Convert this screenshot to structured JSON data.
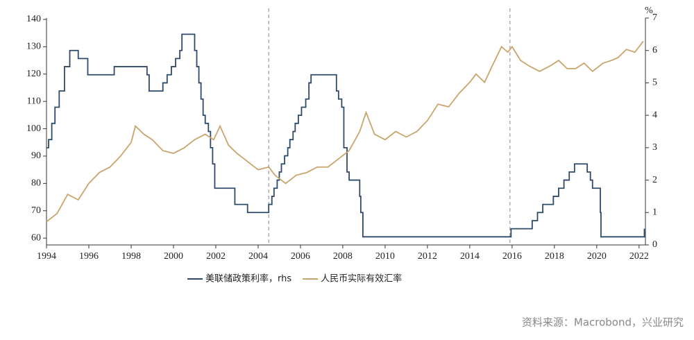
{
  "chart_data": {
    "type": "line",
    "y2_label": "%",
    "source": "资料来源：Macrobond，兴业研究",
    "xlim": [
      1994,
      2022.3
    ],
    "xticks": [
      1994,
      1996,
      1998,
      2000,
      2002,
      2004,
      2006,
      2008,
      2010,
      2012,
      2014,
      2016,
      2018,
      2020,
      2022
    ],
    "ylim": [
      57.5,
      140.5
    ],
    "yticks": [
      60,
      70,
      80,
      90,
      100,
      110,
      120,
      130,
      140
    ],
    "y2lim": [
      0,
      7
    ],
    "y2ticks": [
      0,
      1,
      2,
      3,
      4,
      5,
      6,
      7
    ],
    "vlines": [
      2004.5,
      2015.9
    ],
    "series": [
      {
        "name": "美联储政策利率，rhs",
        "color": "#2d4a6b",
        "axis": "y2",
        "step": true,
        "x": [
          1994.0,
          1994.1,
          1994.25,
          1994.4,
          1994.6,
          1994.85,
          1995.1,
          1995.5,
          1995.95,
          1997.2,
          1998.75,
          1998.85,
          1999.5,
          1999.7,
          1999.9,
          2000.1,
          2000.3,
          2000.4,
          2001.0,
          2001.1,
          2001.2,
          2001.3,
          2001.4,
          2001.5,
          2001.65,
          2001.75,
          2001.85,
          2001.95,
          2002.9,
          2003.5,
          2004.5,
          2004.65,
          2004.75,
          2004.9,
          2005.0,
          2005.1,
          2005.25,
          2005.4,
          2005.5,
          2005.65,
          2005.75,
          2005.9,
          2006.05,
          2006.25,
          2006.4,
          2006.5,
          2007.7,
          2007.8,
          2007.95,
          2008.05,
          2008.2,
          2008.3,
          2008.8,
          2008.85,
          2008.95,
          2015.95,
          2016.95,
          2017.2,
          2017.45,
          2017.95,
          2018.2,
          2018.45,
          2018.7,
          2018.95,
          2019.55,
          2019.7,
          2019.8,
          2020.17,
          2020.2,
          2022.15,
          2022.25
        ],
        "values": [
          3.0,
          3.25,
          3.75,
          4.25,
          4.75,
          5.5,
          6.0,
          5.75,
          5.25,
          5.5,
          5.25,
          4.75,
          5.0,
          5.25,
          5.5,
          5.75,
          6.0,
          6.5,
          6.0,
          5.5,
          5.0,
          4.5,
          4.0,
          3.75,
          3.5,
          3.0,
          2.5,
          1.75,
          1.25,
          1.0,
          1.25,
          1.5,
          1.75,
          2.0,
          2.25,
          2.5,
          2.75,
          3.0,
          3.25,
          3.5,
          3.75,
          4.0,
          4.25,
          4.5,
          5.0,
          5.25,
          4.75,
          4.5,
          4.25,
          3.0,
          2.25,
          2.0,
          1.5,
          1.0,
          0.25,
          0.5,
          0.75,
          1.0,
          1.25,
          1.5,
          1.75,
          2.0,
          2.25,
          2.5,
          2.25,
          2.0,
          1.75,
          1.0,
          0.25,
          0.25,
          0.5
        ]
      },
      {
        "name": "人民币实际有效汇率",
        "color": "#c9a46c",
        "x": [
          1994.0,
          1994.5,
          1995.0,
          1995.5,
          1996.0,
          1996.5,
          1997.0,
          1997.5,
          1998.0,
          1998.2,
          1998.6,
          1999.0,
          1999.5,
          2000.0,
          2000.5,
          2001.0,
          2001.5,
          2001.9,
          2002.2,
          2002.6,
          2003.0,
          2003.5,
          2004.0,
          2004.5,
          2004.8,
          2005.3,
          2005.8,
          2006.3,
          2006.8,
          2007.3,
          2007.8,
          2008.3,
          2008.8,
          2009.1,
          2009.5,
          2010.0,
          2010.5,
          2011.0,
          2011.5,
          2012.0,
          2012.5,
          2013.0,
          2013.5,
          2014.0,
          2014.3,
          2014.7,
          2015.0,
          2015.5,
          2015.8,
          2016.0,
          2016.4,
          2016.8,
          2017.3,
          2017.8,
          2018.2,
          2018.6,
          2019.0,
          2019.4,
          2019.8,
          2020.3,
          2020.7,
          2021.0,
          2021.4,
          2021.8,
          2022.2
        ],
        "values": [
          66,
          69,
          76,
          74,
          80,
          84,
          86,
          90,
          95,
          101,
          98,
          96,
          92,
          91,
          93,
          96,
          98,
          96,
          101,
          94,
          91,
          88,
          85,
          86,
          83,
          80,
          83,
          84,
          86,
          86,
          89,
          92,
          99,
          106,
          98,
          96,
          99,
          97,
          99,
          103,
          109,
          108,
          113,
          117,
          120,
          117,
          122,
          130,
          128,
          130,
          125,
          123,
          121,
          123,
          125,
          122,
          122,
          124,
          121,
          124,
          125,
          126,
          129,
          128,
          132
        ]
      }
    ]
  }
}
